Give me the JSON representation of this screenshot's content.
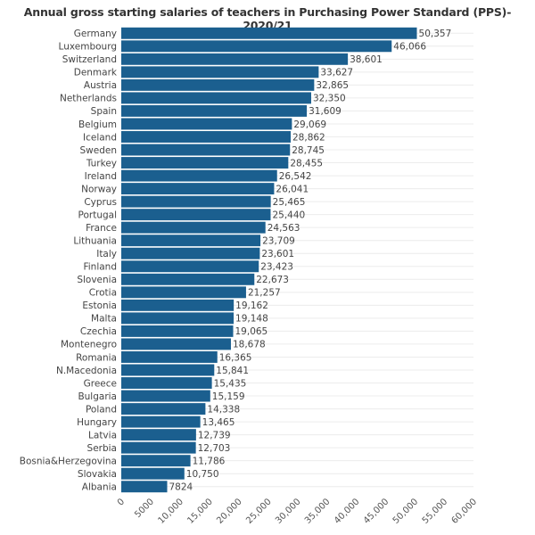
{
  "chart_data": {
    "type": "bar",
    "orientation": "horizontal",
    "title": "Annual gross starting salaries of teachers in Purchasing Power Standard (PPS)- 2020/21",
    "xlabel": "",
    "ylabel": "",
    "xlim": [
      0,
      60000
    ],
    "grid": true,
    "bar_color": "#1b5f8f",
    "categories": [
      "Germany",
      "Luxembourg",
      "Switzerland",
      "Denmark",
      "Austria",
      "Netherlands",
      "Spain",
      "Belgium",
      "Iceland",
      "Sweden",
      "Turkey",
      "Ireland",
      "Norway",
      "Cyprus",
      "Portugal",
      "France",
      "Lithuania",
      "Italy",
      "Finland",
      "Slovenia",
      "Crotia",
      "Estonia",
      "Malta",
      "Czechia",
      "Montenegro",
      "Romania",
      "N.Macedonia",
      "Greece",
      "Bulgaria",
      "Poland",
      "Hungary",
      "Latvia",
      "Serbia",
      "Bosnia&Herzegovina",
      "Slovakia",
      "Albania"
    ],
    "values": [
      50357,
      46066,
      38601,
      33627,
      32865,
      32350,
      31609,
      29069,
      28862,
      28745,
      28455,
      26542,
      26041,
      25465,
      25440,
      24563,
      23709,
      23601,
      23423,
      22673,
      21257,
      19162,
      19148,
      19065,
      18678,
      16365,
      15841,
      15435,
      15159,
      14338,
      13465,
      12739,
      12703,
      11786,
      10750,
      7824
    ],
    "value_labels": [
      "50,357",
      "46,066",
      "38,601",
      "33,627",
      "32,865",
      "32,350",
      "31,609",
      "29,069",
      "28,862",
      "28,745",
      "28,455",
      "26,542",
      "26,041",
      "25,465",
      "25,440",
      "24,563",
      "23,709",
      "23,601",
      "23,423",
      "22,673",
      "21,257",
      "19,162",
      "19,148",
      "19,065",
      "18,678",
      "16,365",
      "15,841",
      "15,435",
      "15,159",
      "14,338",
      "13,465",
      "12,739",
      "12,703",
      "11,786",
      "10,750",
      "7824"
    ],
    "x_ticks": [
      0,
      5000,
      10000,
      15000,
      20000,
      25000,
      30000,
      35000,
      40000,
      45000,
      50000,
      55000,
      60000
    ],
    "x_tick_labels": [
      "0",
      "5000",
      "10,000",
      "15,000",
      "20,000",
      "25,000",
      "30,000",
      "35,000",
      "40,000",
      "45,000",
      "50,000",
      "55,000",
      "60,000"
    ]
  }
}
